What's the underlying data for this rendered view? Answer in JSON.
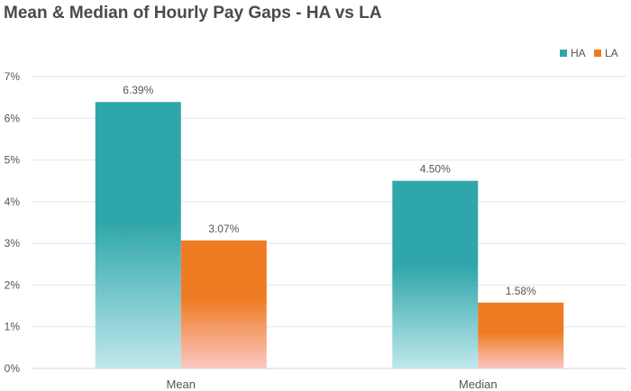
{
  "chart_data": {
    "type": "bar",
    "title": "Mean & Median of Hourly Pay Gaps - HA vs LA",
    "categories": [
      "Mean",
      "Median"
    ],
    "series": [
      {
        "name": "HA",
        "values": [
          6.39,
          4.5
        ],
        "labels": [
          "6.39%",
          "4.50%"
        ],
        "color": "#2fa6aa",
        "color_light": "#bfe8ec"
      },
      {
        "name": "LA",
        "values": [
          3.07,
          1.58
        ],
        "labels": [
          "3.07%",
          "1.58%"
        ],
        "color": "#ee7b22",
        "color_light": "#fbc7c3"
      }
    ],
    "y_ticks": [
      "0%",
      "1%",
      "2%",
      "3%",
      "4%",
      "5%",
      "6%",
      "7%"
    ],
    "ylim": [
      0,
      7
    ],
    "grid": true,
    "legend": "top-right",
    "xlabel": "",
    "ylabel": ""
  }
}
